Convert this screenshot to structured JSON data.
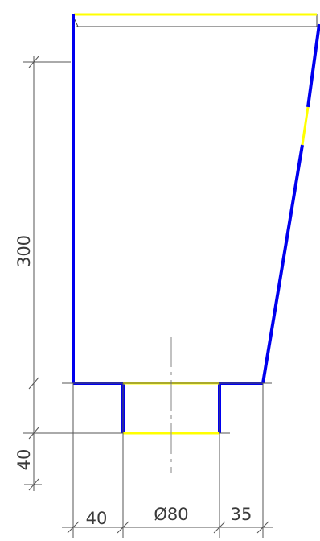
{
  "drawing": {
    "dimensions": {
      "height_main": "300",
      "height_nozzle": "40",
      "width_left": "40",
      "width_diameter": "Ø80",
      "width_right": "35"
    },
    "colors": {
      "outline": "#0000ee",
      "highlight": "#ffff00",
      "dimension": "#555555",
      "centerline": "#999999",
      "thin_edge": "#444444"
    }
  }
}
